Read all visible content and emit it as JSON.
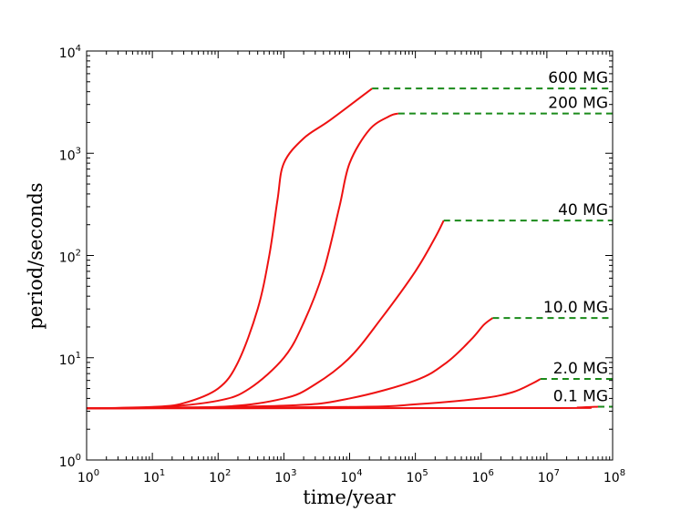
{
  "chart_data": {
    "type": "line",
    "xlabel": "time/year",
    "ylabel": "period/seconds",
    "xscale": "log",
    "yscale": "log",
    "xlim": [
      1,
      100000000
    ],
    "ylim": [
      1,
      10000
    ],
    "grid": false,
    "colors": {
      "evolution": "#ee1111",
      "plateau": "#1a8a1a"
    },
    "x_ticks": [
      {
        "base": "10",
        "exp": "0"
      },
      {
        "base": "10",
        "exp": "1"
      },
      {
        "base": "10",
        "exp": "2"
      },
      {
        "base": "10",
        "exp": "3"
      },
      {
        "base": "10",
        "exp": "4"
      },
      {
        "base": "10",
        "exp": "5"
      },
      {
        "base": "10",
        "exp": "6"
      },
      {
        "base": "10",
        "exp": "7"
      },
      {
        "base": "10",
        "exp": "8"
      }
    ],
    "y_ticks": [
      {
        "base": "10",
        "exp": "0"
      },
      {
        "base": "10",
        "exp": "1"
      },
      {
        "base": "10",
        "exp": "2"
      },
      {
        "base": "10",
        "exp": "3"
      },
      {
        "base": "10",
        "exp": "4"
      }
    ],
    "series": [
      {
        "label": "600 MG",
        "points": [
          [
            1,
            3.2
          ],
          [
            10,
            3.3
          ],
          [
            30,
            3.6
          ],
          [
            100,
            5
          ],
          [
            200,
            9
          ],
          [
            400,
            30
          ],
          [
            600,
            100
          ],
          [
            800,
            350
          ],
          [
            1000,
            800
          ],
          [
            2000,
            1400
          ],
          [
            5000,
            2100
          ],
          [
            22000,
            4300
          ]
        ],
        "plateau": [
          [
            22000,
            4300
          ],
          [
            100000000,
            4300
          ]
        ]
      },
      {
        "label": "200 MG",
        "points": [
          [
            1,
            3.2
          ],
          [
            10,
            3.25
          ],
          [
            100,
            3.8
          ],
          [
            300,
            5
          ],
          [
            1000,
            10
          ],
          [
            2000,
            22
          ],
          [
            4000,
            70
          ],
          [
            7000,
            300
          ],
          [
            10000,
            800
          ],
          [
            20000,
            1700
          ],
          [
            40000,
            2300
          ],
          [
            55000,
            2450
          ]
        ],
        "plateau": [
          [
            55000,
            2450
          ],
          [
            100000000,
            2450
          ]
        ]
      },
      {
        "label": "40 MG",
        "points": [
          [
            1,
            3.2
          ],
          [
            100,
            3.3
          ],
          [
            1000,
            4
          ],
          [
            3000,
            5.5
          ],
          [
            10000,
            10
          ],
          [
            30000,
            24
          ],
          [
            100000,
            70
          ],
          [
            200000,
            150
          ],
          [
            270000,
            220
          ]
        ],
        "plateau": [
          [
            270000,
            220
          ],
          [
            100000000,
            220
          ]
        ]
      },
      {
        "label": "10.0 MG",
        "points": [
          [
            1,
            3.2
          ],
          [
            1000,
            3.4
          ],
          [
            10000,
            4
          ],
          [
            100000,
            6
          ],
          [
            300000,
            9
          ],
          [
            700000,
            15
          ],
          [
            1100000,
            21
          ],
          [
            1500000,
            24.5
          ]
        ],
        "plateau": [
          [
            1500000,
            24.5
          ],
          [
            100000000,
            24.5
          ]
        ]
      },
      {
        "label": "2.0 MG",
        "points": [
          [
            1,
            3.2
          ],
          [
            10000,
            3.3
          ],
          [
            100000,
            3.5
          ],
          [
            1000000,
            4
          ],
          [
            3000000,
            4.6
          ],
          [
            6000000,
            5.6
          ],
          [
            8000000,
            6.2
          ]
        ],
        "plateau": [
          [
            8000000,
            6.2
          ],
          [
            100000000,
            6.2
          ]
        ]
      },
      {
        "label": "0.1 MG",
        "points": [
          [
            1,
            3.2
          ],
          [
            10000000,
            3.22
          ],
          [
            30000000,
            3.26
          ],
          [
            60000000,
            3.32
          ]
        ],
        "plateau": [
          [
            60000000,
            3.32
          ],
          [
            100000000,
            3.32
          ]
        ]
      }
    ]
  }
}
